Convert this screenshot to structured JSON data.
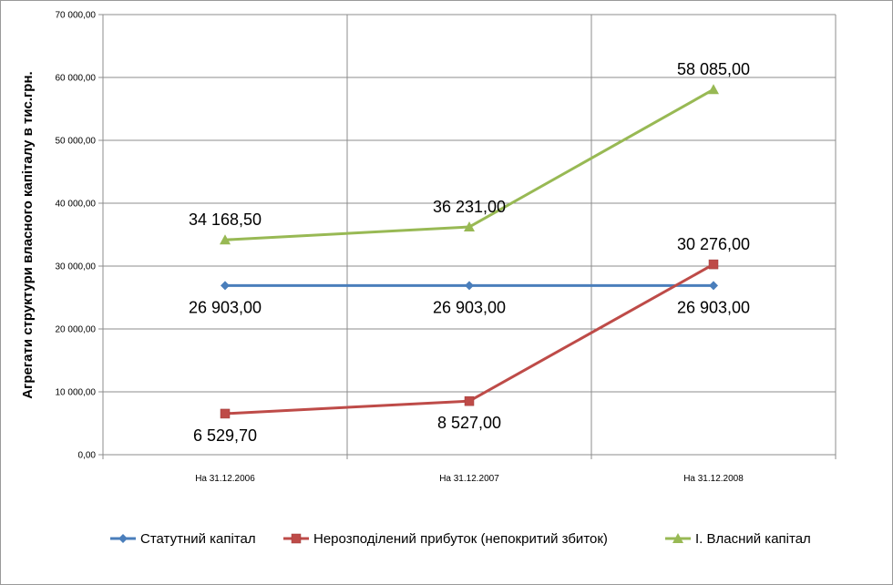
{
  "chart_data": {
    "type": "line",
    "title": "",
    "xlabel": "",
    "ylabel": "Агрегати структури власного капіталу в тис.грн.",
    "categories": [
      "На 31.12.2006",
      "На 31.12.2007",
      "На 31.12.2008"
    ],
    "ylim": [
      0,
      70000
    ],
    "yticks": [
      0,
      10000,
      20000,
      30000,
      40000,
      50000,
      60000,
      70000
    ],
    "ytick_labels": [
      "0,00",
      "10 000,00",
      "20 000,00",
      "30 000,00",
      "40 000,00",
      "50 000,00",
      "60 000,00",
      "70 000,00"
    ],
    "grid": true,
    "legend_position": "bottom",
    "series": [
      {
        "name": "Статутний капітал",
        "color": "#4a7ebb",
        "marker": "diamond",
        "values": [
          26903.0,
          26903.0,
          26903.0
        ],
        "labels": [
          "26 903,00",
          "26 903,00",
          "26 903,00"
        ],
        "label_position": "below"
      },
      {
        "name": "Нерозподілений прибуток (непокритий збиток)",
        "color": "#be4b48",
        "marker": "square",
        "values": [
          6529.7,
          8527.0,
          30276.0
        ],
        "labels": [
          "6 529,70",
          "8 527,00",
          "30 276,00"
        ],
        "label_position": "below-last-above"
      },
      {
        "name": "І. Власний капітал",
        "color": "#98b954",
        "marker": "triangle",
        "values": [
          34168.5,
          36231.0,
          58085.0
        ],
        "labels": [
          "34 168,50",
          "36 231,00",
          "58 085,00"
        ],
        "label_position": "above"
      }
    ]
  }
}
